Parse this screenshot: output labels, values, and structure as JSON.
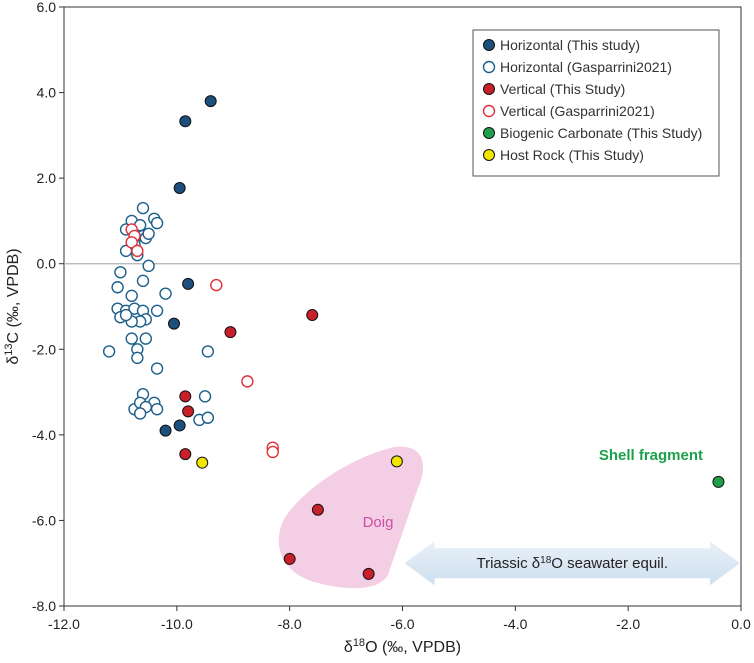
{
  "chart_data": {
    "type": "scatter",
    "title": "",
    "xlabel": "δ18O (‰, VPDB)",
    "ylabel": "δ13C (‰, VPDB)",
    "xlabel_parts": {
      "pre": "δ",
      "sup": "18",
      "post": "O (‰, VPDB)"
    },
    "ylabel_parts": {
      "pre": "δ",
      "sup": "13",
      "post": "C (‰, VPDB)"
    },
    "xlim": [
      -12.0,
      0.0
    ],
    "ylim": [
      -8.0,
      6.0
    ],
    "x_ticks": [
      -12,
      -10,
      -8,
      -6,
      -4,
      -2,
      0
    ],
    "y_ticks": [
      -8,
      -6,
      -4,
      -2,
      0,
      2,
      4,
      6
    ],
    "x_tick_labels": [
      "-12.0",
      "-10.0",
      "-8.0",
      "-6.0",
      "-4.0",
      "-2.0",
      "0.0"
    ],
    "y_tick_labels": [
      "-8.0",
      "-6.0",
      "-4.0",
      "-2.0",
      "0.0",
      "2.0",
      "4.0",
      "6.0"
    ],
    "zero_line": true,
    "legend_position": "top-right",
    "series": [
      {
        "name": "Horizontal (This study)",
        "color": "#1c4f7c",
        "filled": true,
        "points": [
          [
            -9.4,
            3.8
          ],
          [
            -9.85,
            3.33
          ],
          [
            -9.95,
            1.77
          ],
          [
            -9.8,
            -0.47
          ],
          [
            -10.05,
            -1.4
          ],
          [
            -10.2,
            -3.9
          ],
          [
            -9.95,
            -3.78
          ]
        ]
      },
      {
        "name": "Horizontal (Gasparrini2021)",
        "color": "#1c5f8a",
        "filled": false,
        "points": [
          [
            -10.6,
            1.3
          ],
          [
            -10.4,
            1.05
          ],
          [
            -10.35,
            0.95
          ],
          [
            -10.8,
            1.0
          ],
          [
            -10.9,
            0.8
          ],
          [
            -10.7,
            0.7
          ],
          [
            -10.6,
            0.65
          ],
          [
            -10.75,
            0.45
          ],
          [
            -10.9,
            0.3
          ],
          [
            -10.7,
            0.2
          ],
          [
            -10.55,
            0.6
          ],
          [
            -10.5,
            0.7
          ],
          [
            -10.65,
            0.9
          ],
          [
            -10.5,
            -0.05
          ],
          [
            -10.6,
            -0.4
          ],
          [
            -11.0,
            -0.2
          ],
          [
            -11.05,
            -0.55
          ],
          [
            -10.8,
            -0.75
          ],
          [
            -10.2,
            -0.7
          ],
          [
            -11.05,
            -1.05
          ],
          [
            -10.9,
            -1.1
          ],
          [
            -10.75,
            -1.05
          ],
          [
            -10.6,
            -1.1
          ],
          [
            -10.55,
            -1.3
          ],
          [
            -10.65,
            -1.35
          ],
          [
            -10.8,
            -1.35
          ],
          [
            -11.0,
            -1.25
          ],
          [
            -10.9,
            -1.2
          ],
          [
            -10.35,
            -1.1
          ],
          [
            -10.55,
            -1.75
          ],
          [
            -10.8,
            -1.75
          ],
          [
            -10.7,
            -2.0
          ],
          [
            -11.2,
            -2.05
          ],
          [
            -10.7,
            -2.2
          ],
          [
            -9.45,
            -2.05
          ],
          [
            -10.35,
            -2.45
          ],
          [
            -10.6,
            -3.05
          ],
          [
            -10.4,
            -3.25
          ],
          [
            -10.75,
            -3.4
          ],
          [
            -10.65,
            -3.25
          ],
          [
            -10.55,
            -3.35
          ],
          [
            -10.65,
            -3.5
          ],
          [
            -10.35,
            -3.4
          ],
          [
            -9.5,
            -3.1
          ],
          [
            -9.6,
            -3.65
          ],
          [
            -9.45,
            -3.6
          ]
        ]
      },
      {
        "name": "Vertical (This Study)",
        "color": "#c8202a",
        "filled": true,
        "points": [
          [
            -7.6,
            -1.2
          ],
          [
            -9.05,
            -1.6
          ],
          [
            -9.85,
            -3.1
          ],
          [
            -9.8,
            -3.45
          ],
          [
            -9.85,
            -4.45
          ],
          [
            -7.5,
            -5.75
          ],
          [
            -8.0,
            -6.9
          ],
          [
            -6.6,
            -7.25
          ]
        ]
      },
      {
        "name": "Vertical (Gasparrini2021)",
        "color": "#e0303a",
        "filled": false,
        "points": [
          [
            -10.8,
            0.8
          ],
          [
            -10.75,
            0.65
          ],
          [
            -10.8,
            0.5
          ],
          [
            -10.7,
            0.3
          ],
          [
            -9.3,
            -0.5
          ],
          [
            -8.75,
            -2.75
          ],
          [
            -8.3,
            -4.3
          ],
          [
            -8.3,
            -4.4
          ]
        ]
      },
      {
        "name": "Biogenic Carbonate (This Study)",
        "color": "#1ea04a",
        "filled": true,
        "points": [
          [
            -0.4,
            -5.1
          ]
        ]
      },
      {
        "name": "Host Rock (This Study)",
        "color": "#f2e600",
        "filled": true,
        "points": [
          [
            -9.55,
            -4.65
          ],
          [
            -6.1,
            -4.62
          ]
        ]
      }
    ],
    "annotations": {
      "doig_label": "Doig",
      "doig_color": "#cc4fa5",
      "doig_fill": "#f2c6df",
      "shell_label": "Shell fragment",
      "shell_color": "#1ea04a",
      "seawater_parts": {
        "pre": "Triassic δ",
        "sup": "18",
        "post": "O seawater equil."
      },
      "seawater_label": "Triassic δ18O seawater equil.",
      "seawater_range": [
        -6.0,
        0.0
      ],
      "seawater_color": "#d9e6f2"
    }
  }
}
